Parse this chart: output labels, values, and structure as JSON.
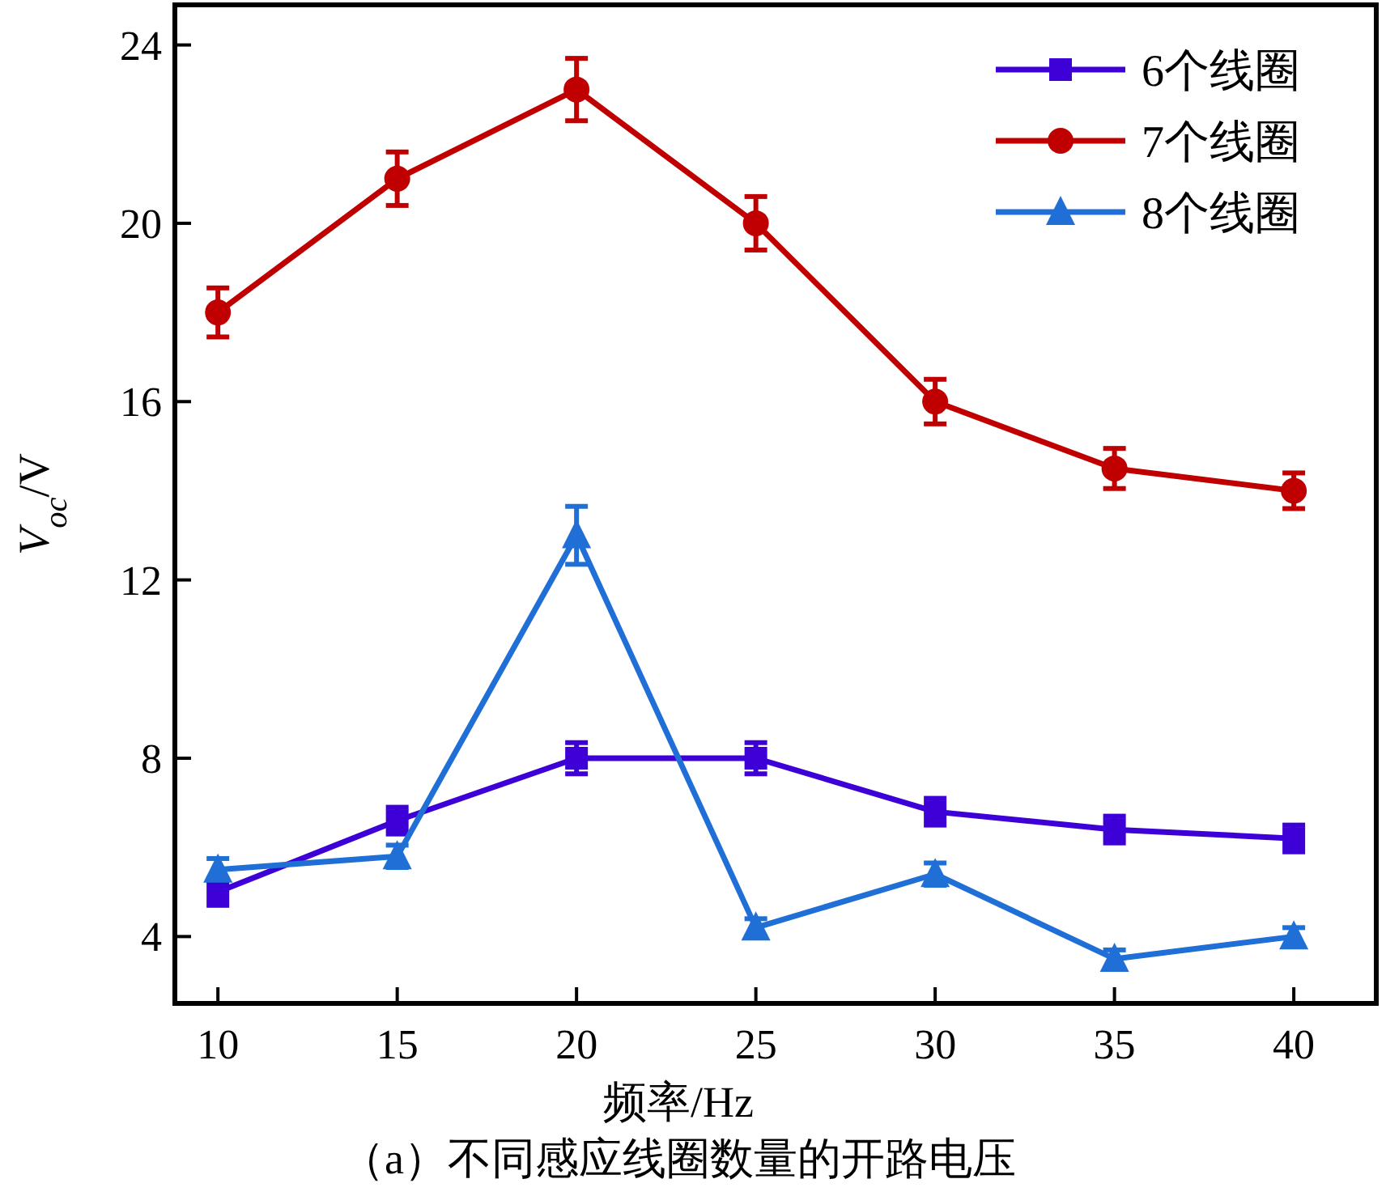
{
  "chart_data": {
    "type": "line",
    "xlabel": "频率/Hz",
    "ylabel": "*V*$_{oc}$/V",
    "x": [
      10,
      15,
      20,
      25,
      30,
      35,
      40
    ],
    "series": [
      {
        "name": "6个线圈",
        "color": "#3d00d6",
        "marker": "square",
        "values": [
          5.0,
          6.6,
          8.0,
          8.0,
          6.8,
          6.4,
          6.2
        ],
        "errors": [
          0.3,
          0.3,
          0.35,
          0.35,
          0.3,
          0.3,
          0.3
        ]
      },
      {
        "name": "7个线圈",
        "color": "#c00000",
        "marker": "circle",
        "values": [
          18,
          21,
          23,
          20,
          16,
          14.5,
          14
        ],
        "errors": [
          0.55,
          0.6,
          0.7,
          0.6,
          0.5,
          0.45,
          0.4
        ]
      },
      {
        "name": "8个线圈",
        "color": "#1f6fd6",
        "marker": "triangle",
        "values": [
          5.5,
          5.8,
          13,
          4.2,
          5.4,
          3.5,
          4.0
        ],
        "errors": [
          0.25,
          0.25,
          0.65,
          0.2,
          0.25,
          0.2,
          0.2
        ]
      }
    ],
    "xlim": [
      8.8,
      42.3
    ],
    "ylim": [
      2.5,
      24.9
    ],
    "xticks": [
      10,
      15,
      20,
      25,
      30,
      35,
      40
    ],
    "yticks": [
      4,
      8,
      12,
      16,
      20,
      24
    ],
    "line_style": "solid",
    "legend": "top right",
    "grid": false,
    "annotations": [
      "（a）不同感应线圈数量的开路电压"
    ]
  }
}
